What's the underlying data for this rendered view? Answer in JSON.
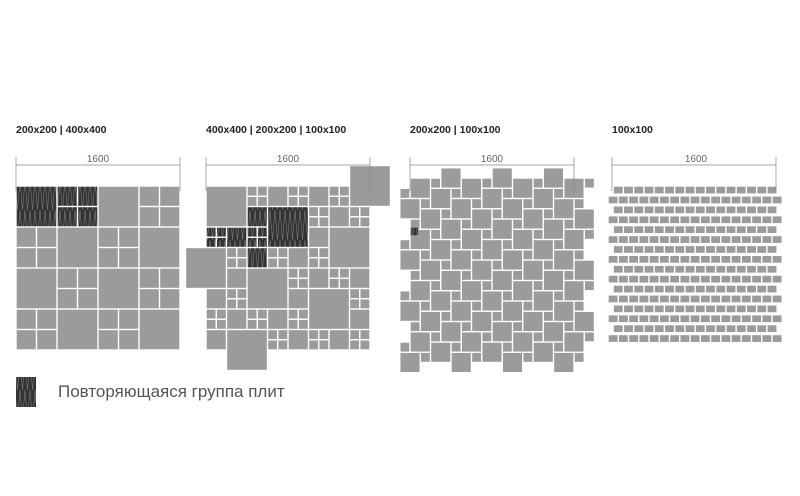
{
  "panels": [
    {
      "title": "200x200 | 400x400",
      "dimension": "1600"
    },
    {
      "title": "400x400 | 200x200 | 100x100",
      "dimension": "1600"
    },
    {
      "title": "200x200 | 100x100",
      "dimension": "1600"
    },
    {
      "title": "100x100",
      "dimension": "1600"
    }
  ],
  "legend": {
    "label": "Повторяющаяся группа плит",
    "icon": "repeating-group-swatch"
  },
  "colors": {
    "tile": "#9b9b9b",
    "repeat_group": "#333333",
    "dimension_line": "#888888"
  }
}
